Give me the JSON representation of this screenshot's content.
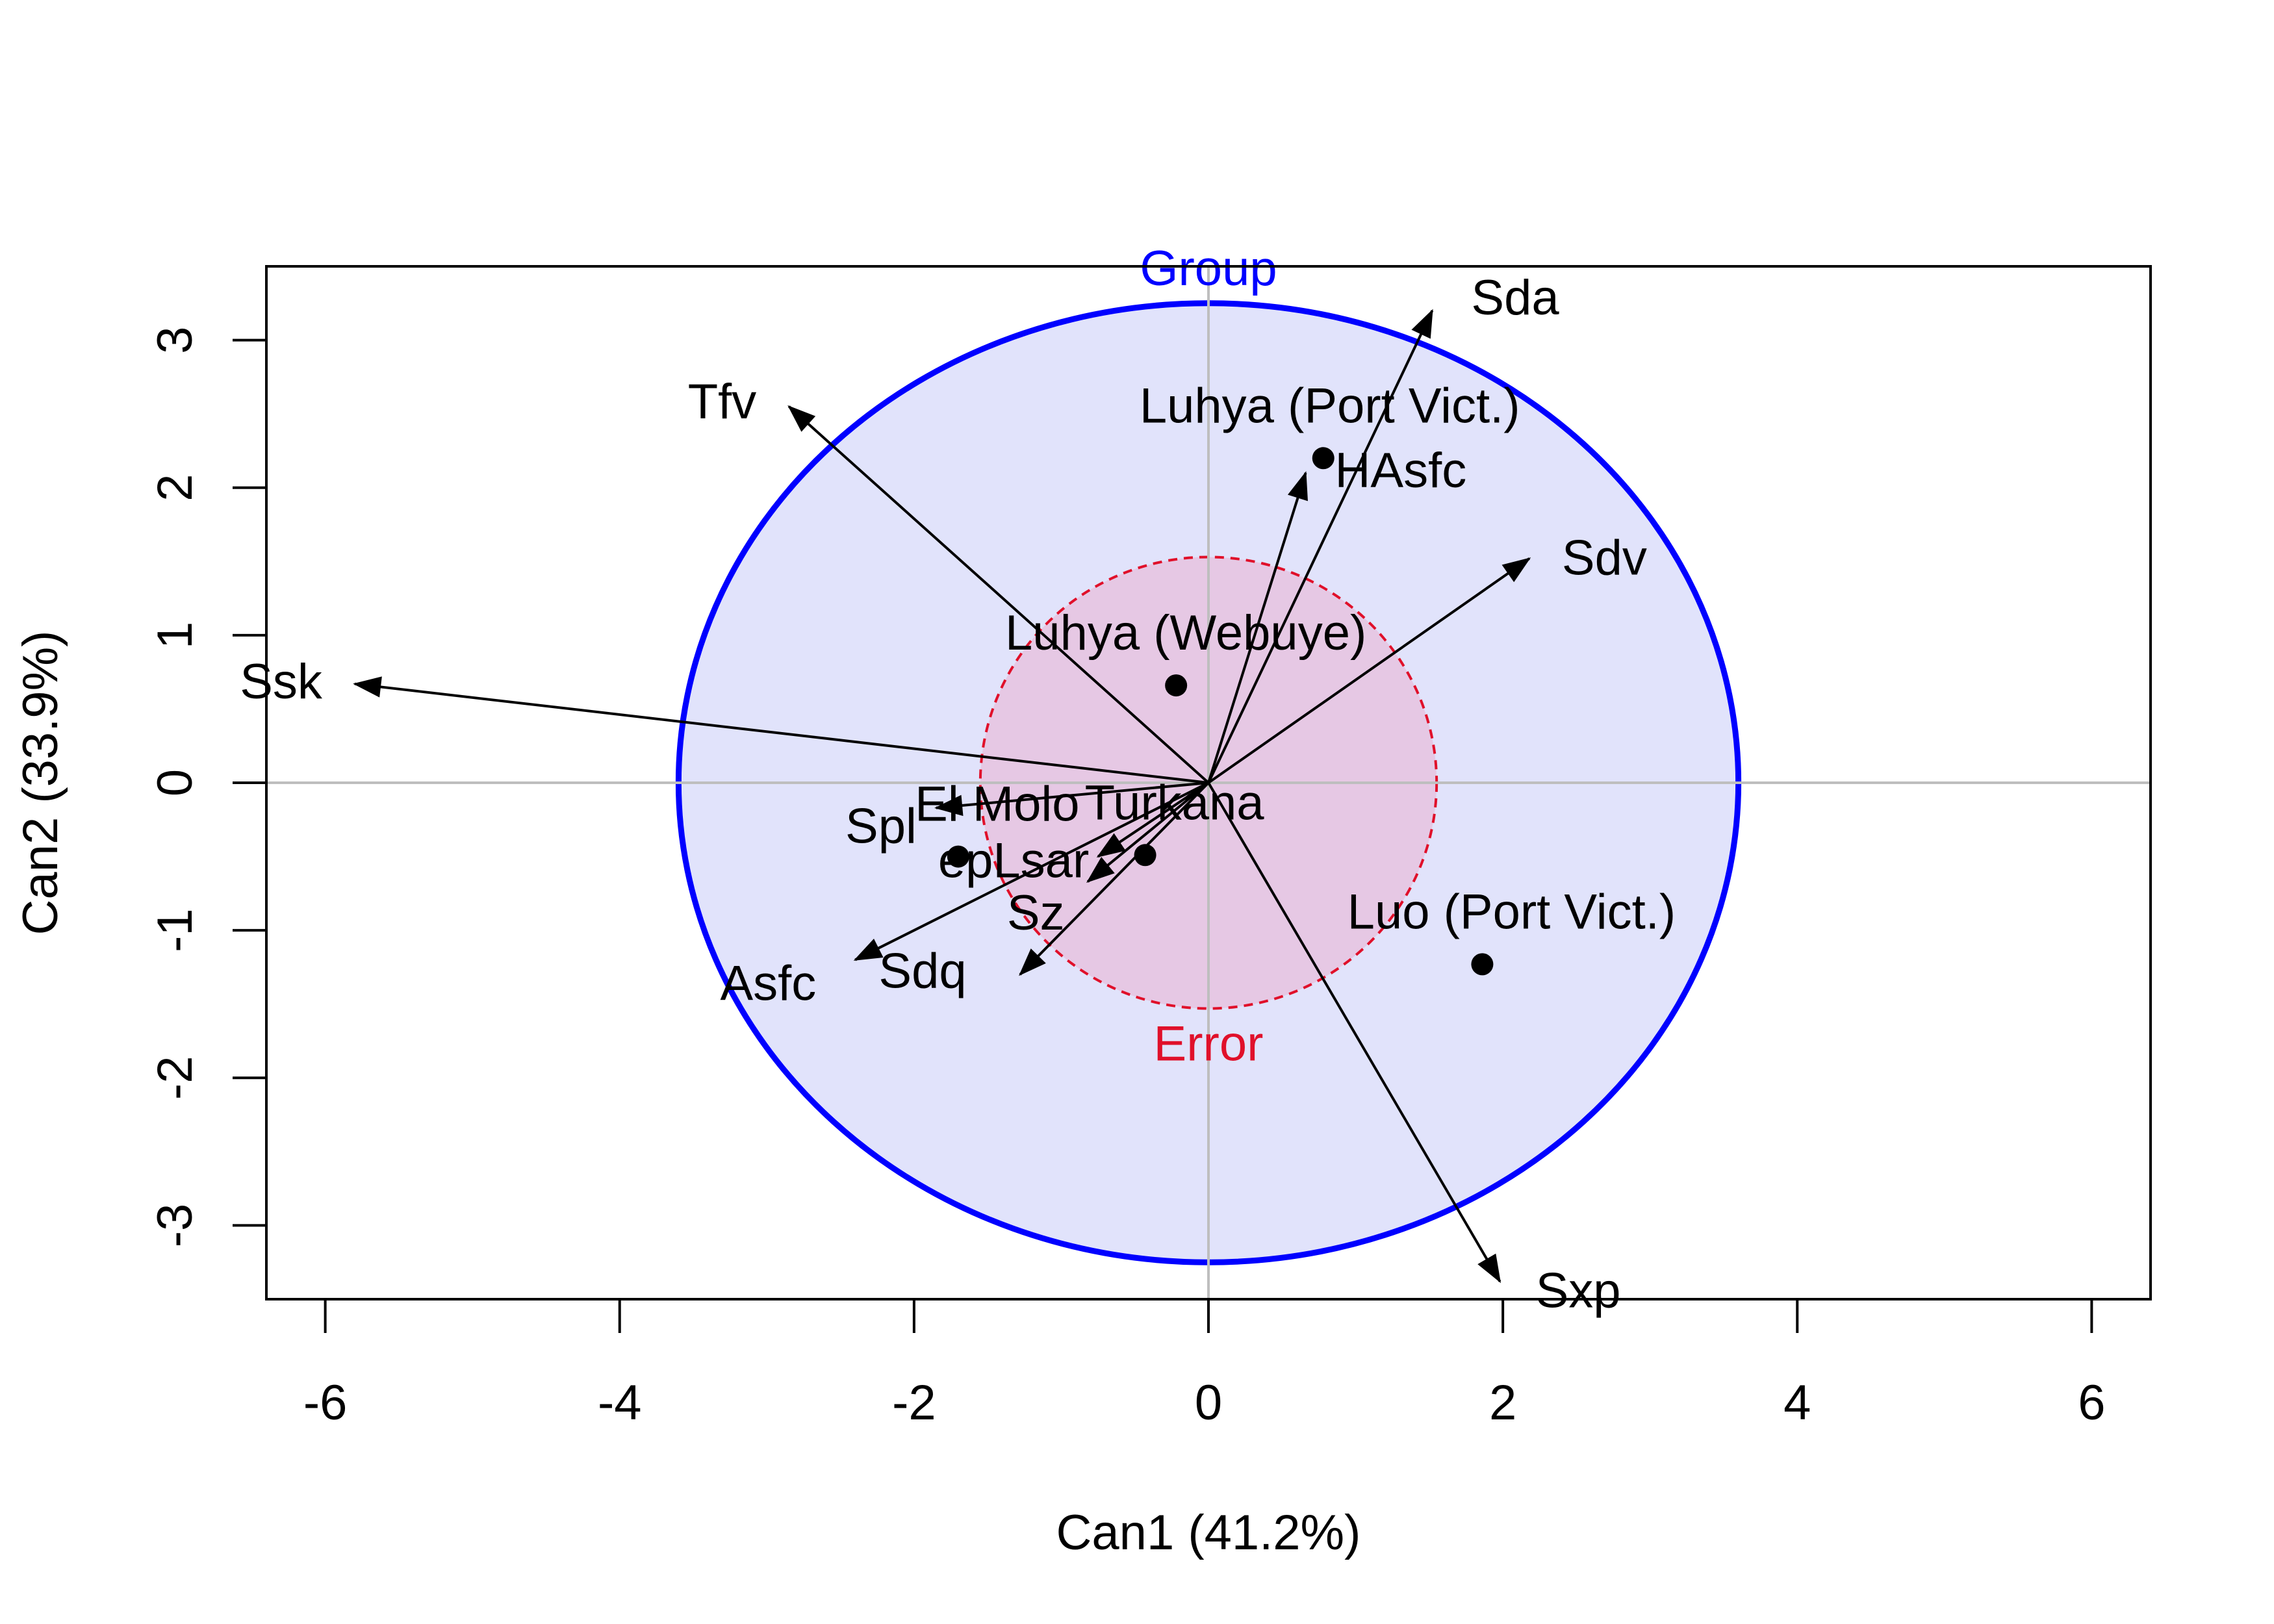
{
  "chart_data": {
    "type": "scatter",
    "xlabel": "Can1 (41.2%)",
    "ylabel": "Can2 (33.9%)",
    "xlim": [
      -6.4,
      6.4
    ],
    "ylim": [
      -3.5,
      3.5
    ],
    "x_ticks": [
      -6,
      -4,
      -2,
      0,
      2,
      4,
      6
    ],
    "y_ticks": [
      -3,
      -2,
      -1,
      0,
      1,
      2,
      3
    ],
    "grid": false,
    "reference_lines": {
      "x": 0,
      "y": 0,
      "color": "#bebebe"
    },
    "ellipses": [
      {
        "label": "Group",
        "rx": 3.6,
        "ry": 3.25,
        "stroke": "#0000ff",
        "fill": "#e1e3fb",
        "dashed": false
      },
      {
        "label": "Error",
        "rx": 1.55,
        "ry": 1.53,
        "stroke": "#e0102a",
        "fill": "#e6c8e4",
        "dashed": true
      }
    ],
    "points": [
      {
        "label": "Luhya (Port Vict.)",
        "x": 0.78,
        "y": 2.2
      },
      {
        "label": "Luhya (Webuye)",
        "x": -0.22,
        "y": 0.66
      },
      {
        "label": "El Molo",
        "x": -1.7,
        "y": -0.5
      },
      {
        "label": "Turkana",
        "x": -0.43,
        "y": -0.49
      },
      {
        "label": "Luo (Port Vict.)",
        "x": 1.86,
        "y": -1.23
      }
    ],
    "vectors": [
      {
        "label": "Sda",
        "x": 1.52,
        "y": 3.2
      },
      {
        "label": "HAsfc",
        "x": 0.66,
        "y": 2.1
      },
      {
        "label": "Tfv",
        "x": -2.85,
        "y": 2.55
      },
      {
        "label": "Sdv",
        "x": 2.18,
        "y": 1.52
      },
      {
        "label": "Ssk",
        "x": -5.8,
        "y": 0.67
      },
      {
        "label": "Spl",
        "x": -1.85,
        "y": -0.17
      },
      {
        "label": "epLsar",
        "x": -0.75,
        "y": -0.5
      },
      {
        "label": "Sz",
        "x": -0.82,
        "y": -0.67
      },
      {
        "label": "Asfc",
        "x": -2.4,
        "y": -1.2
      },
      {
        "label": "Sdq",
        "x": -1.28,
        "y": -1.3
      },
      {
        "label": "Sxp",
        "x": 1.98,
        "y": -3.38
      }
    ]
  }
}
